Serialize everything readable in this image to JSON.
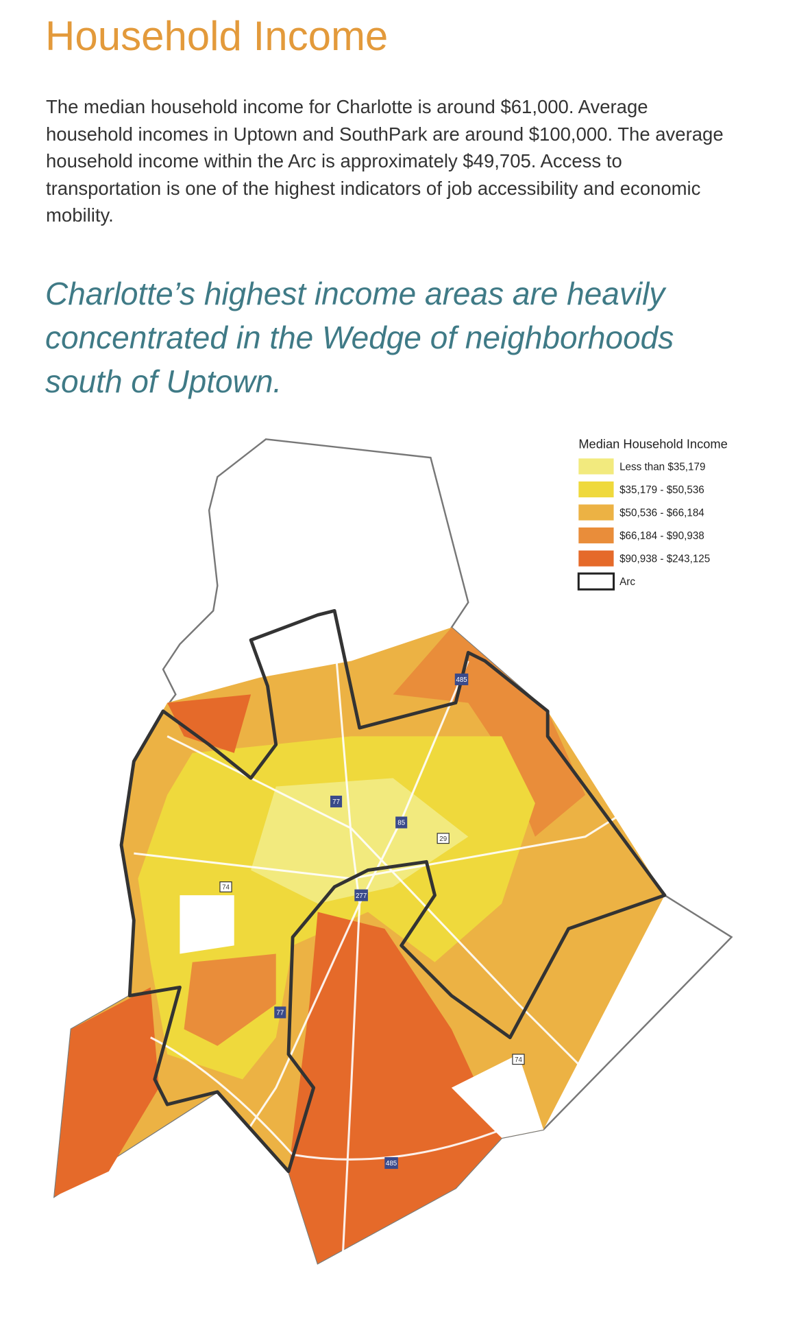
{
  "header": {
    "title": "Household Income"
  },
  "body": {
    "paragraph": "The median household income for Charlotte is around $61,000. Average household incomes in Uptown and SouthPark are around $100,000. The average household income within the Arc is approximately $49,705. Access to transportation is one of the highest indicators of job accessibility and economic mobility.",
    "quote": "Charlotte’s highest income areas are heavily concentrated in the Wedge of neighborhoods south of Uptown."
  },
  "map": {
    "legend": {
      "title": "Median Household Income",
      "items": [
        {
          "label": "Less than $35,179",
          "color": "#f2ea7e"
        },
        {
          "label": "$35,179 - $50,536",
          "color": "#efd93c"
        },
        {
          "label": "$50,536 - $66,184",
          "color": "#ecb244"
        },
        {
          "label": "$66,184 - $90,938",
          "color": "#e98d3a"
        },
        {
          "label": "$90,938 - $243,125",
          "color": "#e56a2a"
        },
        {
          "label": "Arc",
          "color": "#ffffff"
        }
      ]
    },
    "shields": [
      "485",
      "77",
      "85",
      "29",
      "74",
      "277",
      "77",
      "74",
      "485"
    ]
  }
}
